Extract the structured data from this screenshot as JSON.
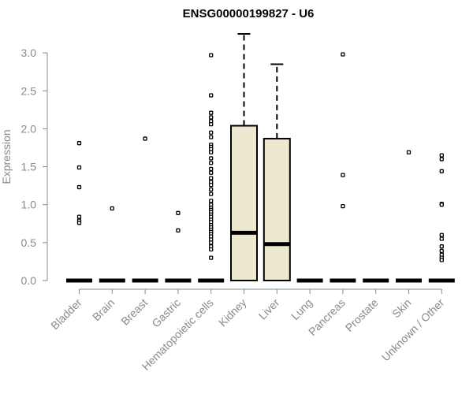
{
  "chart_data": {
    "type": "boxplot",
    "title": "ENSG00000199827 - U6",
    "xlabel": "",
    "ylabel": "Expression",
    "ylim": [
      0,
      3.0
    ],
    "yticks": [
      0.0,
      0.5,
      1.0,
      1.5,
      2.0,
      2.5,
      3.0
    ],
    "ytick_labels": [
      "0.0",
      "0.5",
      "1.0",
      "1.5",
      "2.0",
      "2.5",
      "3.0"
    ],
    "categories": [
      "Bladder",
      "Brain",
      "Breast",
      "Gastric",
      "Hematopoietic cells",
      "Kidney",
      "Liver",
      "Lung",
      "Pancreas",
      "Prostate",
      "Skin",
      "Unknown / Other"
    ],
    "boxes": [
      {
        "q1": 0,
        "median": 0,
        "q3": 0,
        "whisker_low": 0,
        "whisker_high": 0,
        "outliers": [
          1.81,
          1.49,
          1.23,
          0.84,
          0.79,
          0.76
        ]
      },
      {
        "q1": 0,
        "median": 0,
        "q3": 0,
        "whisker_low": 0,
        "whisker_high": 0,
        "outliers": [
          0.95
        ]
      },
      {
        "q1": 0,
        "median": 0,
        "q3": 0,
        "whisker_low": 0,
        "whisker_high": 0,
        "outliers": [
          1.87
        ]
      },
      {
        "q1": 0,
        "median": 0,
        "q3": 0,
        "whisker_low": 0,
        "whisker_high": 0,
        "outliers": [
          0.89,
          0.66
        ]
      },
      {
        "q1": 0,
        "median": 0,
        "q3": 0,
        "whisker_low": 0,
        "whisker_high": 0,
        "outliers": [
          2.97,
          2.44,
          2.21,
          2.15,
          2.1,
          2.06,
          1.95,
          1.89,
          1.79,
          1.76,
          1.73,
          1.69,
          1.61,
          1.55,
          1.47,
          1.42,
          1.35,
          1.3,
          1.26,
          1.2,
          1.14,
          1.05,
          1.0,
          0.96,
          0.93,
          0.9,
          0.87,
          0.84,
          0.8,
          0.77,
          0.73,
          0.7,
          0.67,
          0.64,
          0.61,
          0.58,
          0.54,
          0.5,
          0.45,
          0.41,
          0.3
        ]
      },
      {
        "q1": 0,
        "median": 0.63,
        "q3": 2.04,
        "whisker_low": 0,
        "whisker_high": 3.25,
        "outliers": []
      },
      {
        "q1": 0,
        "median": 0.48,
        "q3": 1.87,
        "whisker_low": 0,
        "whisker_high": 2.85,
        "outliers": []
      },
      {
        "q1": 0,
        "median": 0,
        "q3": 0,
        "whisker_low": 0,
        "whisker_high": 0,
        "outliers": []
      },
      {
        "q1": 0,
        "median": 0,
        "q3": 0,
        "whisker_low": 0,
        "whisker_high": 0,
        "outliers": [
          2.98,
          1.39,
          0.98
        ]
      },
      {
        "q1": 0,
        "median": 0,
        "q3": 0,
        "whisker_low": 0,
        "whisker_high": 0,
        "outliers": []
      },
      {
        "q1": 0,
        "median": 0,
        "q3": 0,
        "whisker_low": 0,
        "whisker_high": 0,
        "outliers": [
          1.69
        ]
      },
      {
        "q1": 0,
        "median": 0,
        "q3": 0,
        "whisker_low": 0,
        "whisker_high": 0,
        "outliers": [
          1.65,
          1.6,
          1.44,
          1.01,
          1.0,
          0.6,
          0.55,
          0.45,
          0.39,
          0.34,
          0.3,
          0.27
        ]
      }
    ],
    "colors": {
      "box_fill": "#ede8d0",
      "box_stroke": "#000000",
      "axis": "#8a8a8a",
      "text": "#8a8a8a",
      "title": "#000000"
    }
  }
}
